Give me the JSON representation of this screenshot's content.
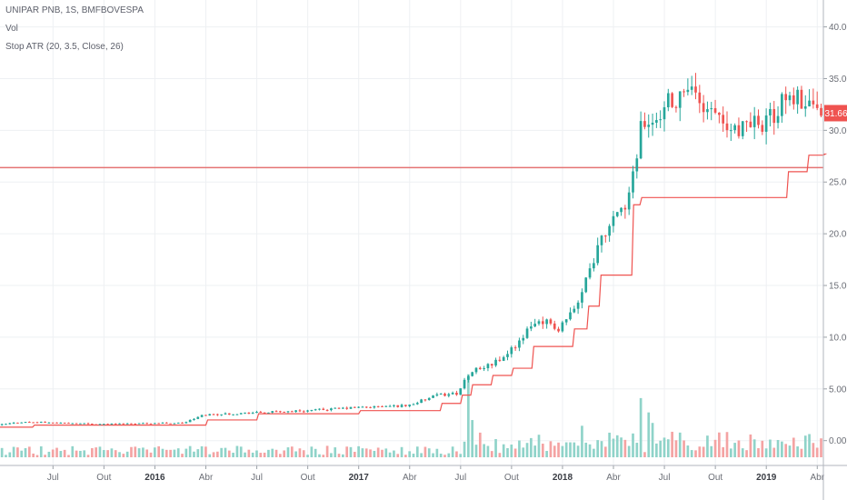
{
  "legend": {
    "symbol": "UNIPAR PNB, 1S, BMFBOVESPA",
    "volume": "Vol",
    "indicator": "Stop ATR (20, 3.5, Close, 26)"
  },
  "last_price_label": "31.66",
  "colors": {
    "up": "#26a69a",
    "down": "#ef5350",
    "volume_up": "#8fd3c9",
    "volume_down": "#f4a3a3",
    "stop_line": "#ef5350",
    "horizontal_line": "#e57373",
    "grid": "#eef0f3",
    "axis_text": "#6b6e76"
  },
  "chart_data": {
    "type": "candlestick",
    "y_axis": {
      "position": "right",
      "ylim": [
        -2.4,
        42.6
      ],
      "ticks": [
        0,
        5,
        10,
        15,
        20,
        25,
        30,
        35,
        40
      ],
      "tick_labels": [
        "0.00",
        "5.00",
        "10.00",
        "15.00",
        "20.00",
        "25.00",
        "30.00",
        "35.00",
        "40.00"
      ]
    },
    "x_axis": {
      "labels": [
        {
          "text": "Jul",
          "t": 2015.5,
          "bold": false
        },
        {
          "text": "Out",
          "t": 2015.75,
          "bold": false
        },
        {
          "text": "2016",
          "t": 2016.0,
          "bold": true
        },
        {
          "text": "Abr",
          "t": 2016.25,
          "bold": false
        },
        {
          "text": "Jul",
          "t": 2016.5,
          "bold": false
        },
        {
          "text": "Out",
          "t": 2016.75,
          "bold": false
        },
        {
          "text": "2017",
          "t": 2017.0,
          "bold": true
        },
        {
          "text": "Abr",
          "t": 2017.25,
          "bold": false
        },
        {
          "text": "Jul",
          "t": 2017.5,
          "bold": false
        },
        {
          "text": "Out",
          "t": 2017.75,
          "bold": false
        },
        {
          "text": "2018",
          "t": 2018.0,
          "bold": true
        },
        {
          "text": "Abr",
          "t": 2018.25,
          "bold": false
        },
        {
          "text": "Jul",
          "t": 2018.5,
          "bold": false
        },
        {
          "text": "Out",
          "t": 2018.75,
          "bold": false
        },
        {
          "text": "2019",
          "t": 2019.0,
          "bold": true
        },
        {
          "text": "Abr",
          "t": 2019.25,
          "bold": false
        }
      ],
      "range": [
        2015.24,
        2019.28
      ]
    },
    "horizontal_line": 26.4,
    "price_path": [
      [
        2015.24,
        1.5
      ],
      [
        2015.35,
        1.8
      ],
      [
        2015.5,
        1.75
      ],
      [
        2015.75,
        1.6
      ],
      [
        2016.0,
        1.7
      ],
      [
        2016.15,
        1.7
      ],
      [
        2016.25,
        2.5
      ],
      [
        2016.5,
        2.7
      ],
      [
        2016.75,
        2.9
      ],
      [
        2017.0,
        3.2
      ],
      [
        2017.25,
        3.4
      ],
      [
        2017.4,
        4.4
      ],
      [
        2017.5,
        4.6
      ],
      [
        2017.55,
        6.5
      ],
      [
        2017.7,
        7.8
      ],
      [
        2017.8,
        9.5
      ],
      [
        2017.88,
        11.8
      ],
      [
        2018.0,
        10.8
      ],
      [
        2018.1,
        14.0
      ],
      [
        2018.2,
        20.0
      ],
      [
        2018.3,
        22.0
      ],
      [
        2018.35,
        25.0
      ],
      [
        2018.4,
        31.0
      ],
      [
        2018.5,
        32.0
      ],
      [
        2018.6,
        34.0
      ],
      [
        2018.75,
        31.0
      ],
      [
        2018.85,
        29.5
      ],
      [
        2019.0,
        31.0
      ],
      [
        2019.15,
        33.5
      ],
      [
        2019.28,
        31.66
      ]
    ],
    "stop_steps": [
      [
        2015.24,
        1.3
      ],
      [
        2015.4,
        1.5
      ],
      [
        2016.25,
        2.0
      ],
      [
        2016.5,
        2.6
      ],
      [
        2017.0,
        2.9
      ],
      [
        2017.4,
        3.6
      ],
      [
        2017.5,
        4.4
      ],
      [
        2017.55,
        5.4
      ],
      [
        2017.65,
        6.3
      ],
      [
        2017.75,
        7.0
      ],
      [
        2017.85,
        9.1
      ],
      [
        2018.05,
        10.8
      ],
      [
        2018.12,
        13.0
      ],
      [
        2018.18,
        16.0
      ],
      [
        2018.34,
        22.8
      ],
      [
        2018.38,
        23.5
      ],
      [
        2019.1,
        26.0
      ],
      [
        2019.2,
        27.6
      ],
      [
        2019.28,
        27.7
      ]
    ],
    "volume_scale_max": 6.3,
    "volume_spikes": [
      {
        "t": 2017.53,
        "v": 8.7
      },
      {
        "t": 2018.38,
        "v": 6.2
      },
      {
        "t": 2018.42,
        "v": 4.7
      },
      {
        "t": 2018.45,
        "v": 3.6
      },
      {
        "t": 2018.1,
        "v": 3.3
      },
      {
        "t": 2017.55,
        "v": 3.9
      }
    ]
  }
}
